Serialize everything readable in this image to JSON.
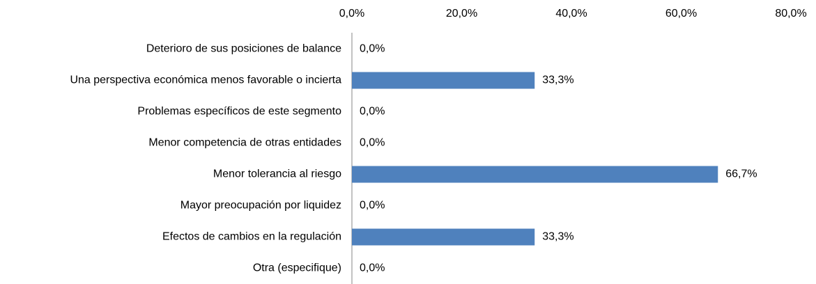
{
  "chart_data": {
    "type": "bar",
    "orientation": "horizontal",
    "categories": [
      "Deterioro de sus posiciones de balance",
      "Una perspectiva económica menos favorable o incierta",
      "Problemas específicos de este segmento",
      "Menor competencia de otras entidades",
      "Menor tolerancia al riesgo",
      "Mayor preocupación por liquidez",
      "Efectos de cambios en la regulación",
      "Otra (especifique)"
    ],
    "values": [
      0,
      33.3,
      0,
      0,
      66.7,
      0,
      33.3,
      0
    ],
    "value_labels": [
      "0,0%",
      "33,3%",
      "0,0%",
      "0,0%",
      "66,7%",
      "0,0%",
      "33,3%",
      "0,0%"
    ],
    "color": "#4f81bd",
    "xlim": [
      0,
      80
    ],
    "xticks": [
      {
        "value": 0,
        "label": "0,0%"
      },
      {
        "value": 20,
        "label": "20,0%"
      },
      {
        "value": 40,
        "label": "40,0%"
      },
      {
        "value": 60,
        "label": "60,0%"
      },
      {
        "value": 80,
        "label": "80,0%"
      }
    ],
    "grid": false
  }
}
